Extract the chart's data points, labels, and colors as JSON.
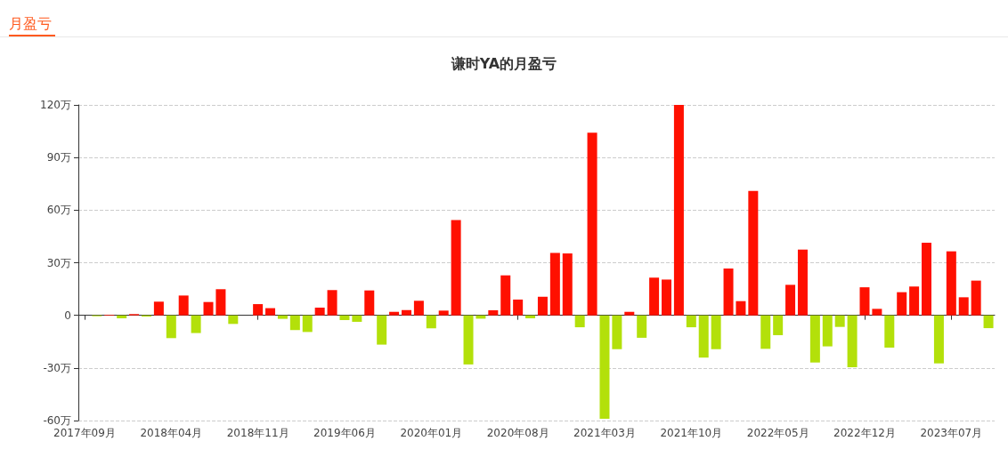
{
  "chart_data": {
    "type": "bar",
    "title": "谦时YA的月盈亏",
    "annotations": [
      "月盈亏"
    ],
    "categories": [
      "2017年09月",
      null,
      null,
      null,
      null,
      null,
      null,
      "2018年04月",
      null,
      null,
      null,
      null,
      null,
      null,
      "2018年11月",
      null,
      null,
      null,
      null,
      null,
      null,
      "2019年06月",
      null,
      null,
      null,
      null,
      null,
      null,
      "2020年01月",
      null,
      null,
      null,
      null,
      null,
      null,
      "2020年08月",
      null,
      null,
      null,
      null,
      null,
      null,
      "2021年03月",
      null,
      null,
      null,
      null,
      null,
      null,
      "2021年10月",
      null,
      null,
      null,
      null,
      null,
      null,
      "2022年05月",
      null,
      null,
      null,
      null,
      null,
      null,
      "2022年12月",
      null,
      null,
      null,
      null,
      null,
      null,
      "2023年07月",
      null,
      null,
      null
    ],
    "values": [
      0,
      -0.5,
      0.3,
      -1.7,
      0.7,
      -0.7,
      7.8,
      -13.0,
      11.3,
      -10.1,
      7.6,
      14.9,
      -4.9,
      0,
      6.4,
      4.1,
      -2.0,
      -8.4,
      -9.5,
      4.4,
      14.4,
      -2.7,
      -3.7,
      14.2,
      -16.7,
      2.0,
      3.0,
      8.3,
      -7.4,
      2.7,
      54.4,
      -28.0,
      -1.9,
      2.9,
      22.8,
      9.0,
      -1.7,
      10.6,
      35.6,
      35.3,
      -6.8,
      104.1,
      -59.0,
      -19.3,
      2.0,
      -12.8,
      21.5,
      20.4,
      120,
      -6.8,
      -24.1,
      -19.3,
      26.7,
      8.1,
      71.0,
      -19.1,
      -11.3,
      17.4,
      37.5,
      -26.9,
      -17.7,
      -6.6,
      -29.6,
      16.0,
      3.7,
      -18.4,
      13.2,
      16.4,
      41.4,
      -27.4,
      36.5,
      10.3,
      19.8,
      -7.3
    ],
    "colors": [
      "#ff1000",
      "#b3e00a",
      "#ff1000",
      "#b3e00a",
      "#ff1000",
      "#b3e00a",
      "#ff1000",
      "#b3e00a",
      "#ff1000",
      "#b3e00a",
      "#ff1000",
      "#ff1000",
      "#b3e00a",
      "#ff1000",
      "#ff1000",
      "#ff1000",
      "#b3e00a",
      "#b3e00a",
      "#b3e00a",
      "#ff1000",
      "#ff1000",
      "#b3e00a",
      "#b3e00a",
      "#ff1000",
      "#b3e00a",
      "#ff1000",
      "#ff1000",
      "#ff1000",
      "#b3e00a",
      "#ff1000",
      "#ff1000",
      "#b3e00a",
      "#b3e00a",
      "#ff1000",
      "#ff1000",
      "#ff1000",
      "#b3e00a",
      "#ff1000",
      "#ff1000",
      "#ff1000",
      "#b3e00a",
      "#ff1000",
      "#b3e00a",
      "#b3e00a",
      "#ff1000",
      "#b3e00a",
      "#ff1000",
      "#ff1000",
      "#ff1000",
      "#b3e00a",
      "#b3e00a",
      "#b3e00a",
      "#ff1000",
      "#ff1000",
      "#ff1000",
      "#b3e00a",
      "#b3e00a",
      "#ff1000",
      "#ff1000",
      "#b3e00a",
      "#b3e00a",
      "#b3e00a",
      "#b3e00a",
      "#ff1000",
      "#ff1000",
      "#b3e00a",
      "#ff1000",
      "#ff1000",
      "#ff1000",
      "#b3e00a",
      "#ff1000",
      "#ff1000",
      "#ff1000",
      "#b3e00a"
    ],
    "ylim": [
      -60,
      120
    ],
    "yticks": [
      {
        "value": -60,
        "label": "-60万"
      },
      {
        "value": -30,
        "label": "-30万"
      },
      0,
      {
        "value": 30,
        "label": "30万"
      },
      {
        "value": 60,
        "label": "60万"
      },
      {
        "value": 90,
        "label": "90万"
      },
      {
        "value": 120,
        "label": "120万"
      }
    ],
    "grid": "y"
  }
}
